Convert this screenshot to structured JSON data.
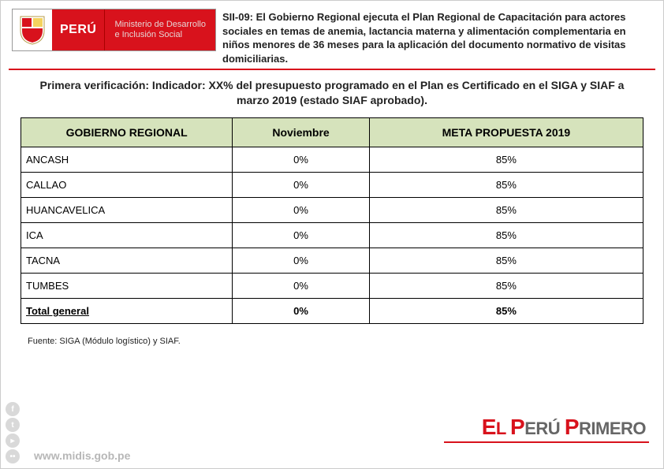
{
  "header": {
    "peru_label": "PERÚ",
    "ministry_line1": "Ministerio de Desarrollo",
    "ministry_line2": "e Inclusión Social",
    "title": "SII-09: El Gobierno Regional ejecuta el Plan Regional de Capacitación para actores sociales en temas de anemia, lactancia materna y alimentación complementaria en niños menores de 36 meses para la aplicación del documento normativo de visitas domiciliarias."
  },
  "verification_text": "Primera verificación: Indicador: XX% del presupuesto programado en el Plan es Certificado en el SIGA y SIAF a marzo 2019 (estado SIAF aprobado).",
  "table": {
    "columns": [
      "GOBIERNO REGIONAL",
      "Noviembre",
      "META PROPUESTA 2019"
    ],
    "col_widths": [
      "34%",
      "22%",
      "44%"
    ],
    "header_bg": "#d6e3bc",
    "rows": [
      [
        "ANCASH",
        "0%",
        "85%"
      ],
      [
        "CALLAO",
        "0%",
        "85%"
      ],
      [
        "HUANCAVELICA",
        "0%",
        "85%"
      ],
      [
        "ICA",
        "0%",
        "85%"
      ],
      [
        "TACNA",
        "0%",
        "85%"
      ],
      [
        "TUMBES",
        "0%",
        "85%"
      ]
    ],
    "total_row": [
      "Total general",
      "0%",
      "85%"
    ]
  },
  "source_note": "Fuente: SIGA (Módulo logístico) y SIAF.",
  "footer": {
    "slogan_el": "E",
    "slogan_l": "L",
    "slogan_p": "P",
    "slogan_eru": "ERÚ",
    "slogan_p2": "P",
    "slogan_rimero": "RIMERO",
    "url": "www.midis.gob.pe"
  },
  "colors": {
    "brand_red": "#d8121c",
    "header_green": "#d6e3bc"
  }
}
